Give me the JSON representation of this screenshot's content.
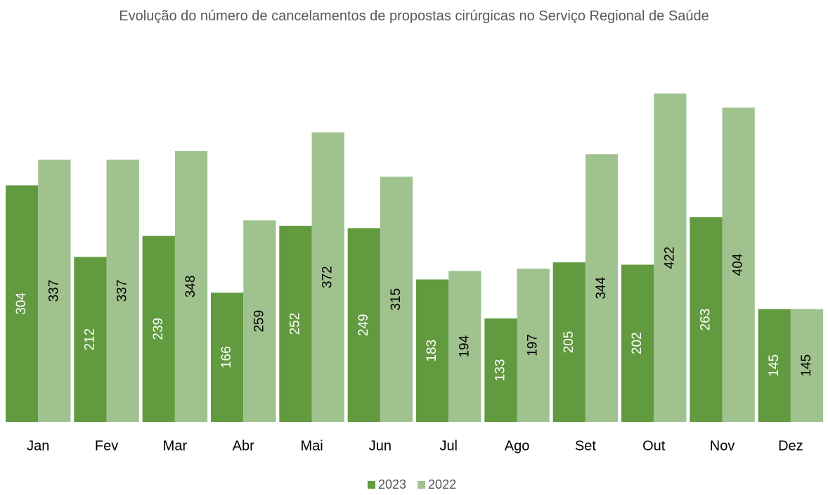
{
  "chart_data": {
    "type": "bar",
    "title": "Evolução do número de cancelamentos de propostas cirúrgicas no Serviço Regional de Saúde",
    "categories": [
      "Jan",
      "Fev",
      "Mar",
      "Abr",
      "Mai",
      "Jun",
      "Jul",
      "Ago",
      "Set",
      "Out",
      "Nov",
      "Dez"
    ],
    "series": [
      {
        "name": "2023",
        "color": "#619a3f",
        "values": [
          304,
          212,
          239,
          166,
          252,
          249,
          183,
          133,
          205,
          202,
          263,
          145
        ]
      },
      {
        "name": "2022",
        "color": "#a0c28e",
        "values": [
          337,
          337,
          348,
          259,
          372,
          315,
          194,
          197,
          344,
          422,
          404,
          145
        ]
      }
    ],
    "legend": "bottom"
  }
}
